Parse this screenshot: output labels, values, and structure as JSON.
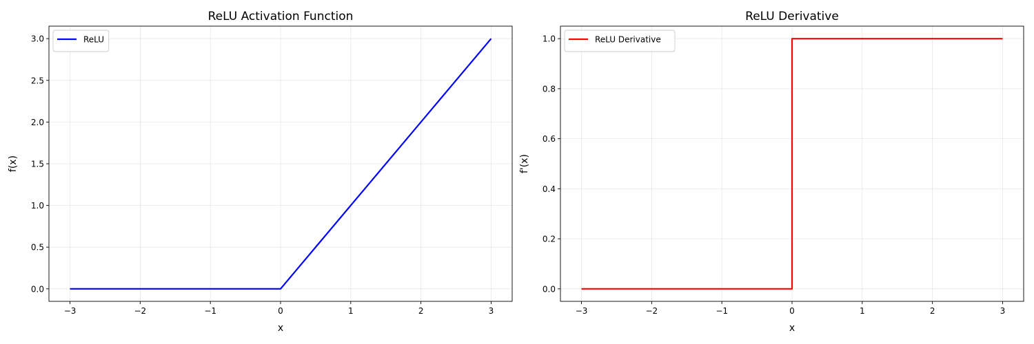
{
  "chart_data": [
    {
      "type": "line",
      "title": "ReLU Activation Function",
      "xlabel": "x",
      "ylabel": "f(x)",
      "xlim": [
        -3.3,
        3.3
      ],
      "ylim": [
        -0.15,
        3.15
      ],
      "xticks": [
        -3,
        -2,
        -1,
        0,
        1,
        2,
        3
      ],
      "xtick_labels": [
        "−3",
        "−2",
        "−1",
        "0",
        "1",
        "2",
        "3"
      ],
      "yticks": [
        0,
        0.5,
        1,
        1.5,
        2,
        2.5,
        3
      ],
      "ytick_labels": [
        "0.0",
        "0.5",
        "1.0",
        "1.5",
        "2.0",
        "2.5",
        "3.0"
      ],
      "grid": true,
      "legend_position": "upper-left",
      "series": [
        {
          "name": "ReLU",
          "color": "#0000ff",
          "x": [
            -3,
            0,
            3
          ],
          "y": [
            0,
            0,
            3
          ]
        }
      ]
    },
    {
      "type": "line",
      "title": "ReLU Derivative",
      "xlabel": "x",
      "ylabel": "f'(x)",
      "xlim": [
        -3.3,
        3.3
      ],
      "ylim": [
        -0.05,
        1.05
      ],
      "xticks": [
        -3,
        -2,
        -1,
        0,
        1,
        2,
        3
      ],
      "xtick_labels": [
        "−3",
        "−2",
        "−1",
        "0",
        "1",
        "2",
        "3"
      ],
      "yticks": [
        0,
        0.2,
        0.4,
        0.6,
        0.8,
        1.0
      ],
      "ytick_labels": [
        "0.0",
        "0.2",
        "0.4",
        "0.6",
        "0.8",
        "1.0"
      ],
      "grid": true,
      "legend_position": "upper-left",
      "series": [
        {
          "name": "ReLU Derivative",
          "color": "#ff0000",
          "x": [
            -3,
            0,
            0,
            3
          ],
          "y": [
            0,
            0,
            1,
            1
          ]
        }
      ]
    }
  ]
}
